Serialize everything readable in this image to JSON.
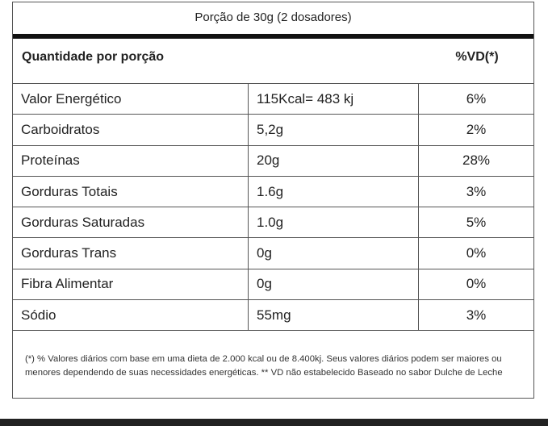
{
  "header": {
    "title": "Porção de 30g (2 dosadores)"
  },
  "table": {
    "columns": [
      "Quantidade por porção",
      "%VD(*)"
    ],
    "rows": [
      [
        "Valor Energético",
        "115Kcal= 483 kj",
        "6%"
      ],
      [
        "Carboidratos",
        "5,2g",
        "2%"
      ],
      [
        "Proteínas",
        "20g",
        "28%"
      ],
      [
        "Gorduras Totais",
        "1.6g",
        "3%"
      ],
      [
        "Gorduras Saturadas",
        "1.0g",
        "5%"
      ],
      [
        "Gorduras Trans",
        "0g",
        "0%"
      ],
      [
        "Fibra Alimentar",
        "0g",
        "0%"
      ],
      [
        "Sódio",
        "55mg",
        "3%"
      ]
    ]
  },
  "footnote": "(*) % Valores diários com base em uma dieta de 2.000 kcal ou de 8.400kj. Seus valores diários podem ser maiores ou menores dependendo de suas necessidades energéticas. ** VD não estabelecido Baseado no sabor Dulche de Leche"
}
